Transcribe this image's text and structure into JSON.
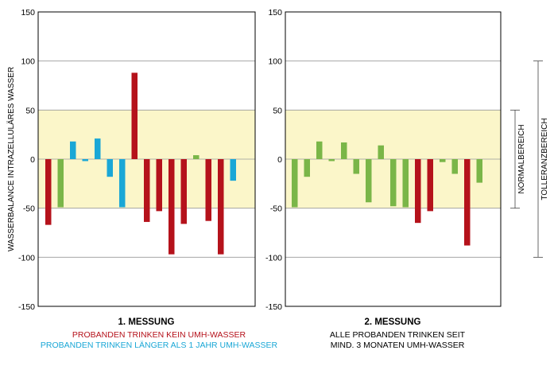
{
  "colors": {
    "red": "#b5121b",
    "blue": "#1aa7d6",
    "green": "#7ab648",
    "band": "#fbf6c9",
    "frame": "#000000",
    "grid": "#9a9a9a"
  },
  "chart_data": [
    {
      "type": "bar",
      "title": "1. MESSUNG",
      "ylabel": "WASSERBALANCE INTRAZELLULÄRES WASSER",
      "ylim": [
        -150,
        150
      ],
      "yticks": [
        -150,
        -100,
        -50,
        0,
        50,
        100,
        150
      ],
      "shaded_range": [
        -50,
        50
      ],
      "grid": true,
      "bars": [
        {
          "value": -67,
          "group": "red"
        },
        {
          "value": -49,
          "group": "green"
        },
        {
          "value": 18,
          "group": "blue"
        },
        {
          "value": -2,
          "group": "blue"
        },
        {
          "value": 21,
          "group": "blue"
        },
        {
          "value": -18,
          "group": "blue"
        },
        {
          "value": -49,
          "group": "blue"
        },
        {
          "value": 88,
          "group": "red"
        },
        {
          "value": -64,
          "group": "red"
        },
        {
          "value": -53,
          "group": "red"
        },
        {
          "value": -97,
          "group": "red"
        },
        {
          "value": -66,
          "group": "red"
        },
        {
          "value": 4,
          "group": "green"
        },
        {
          "value": -63,
          "group": "red"
        },
        {
          "value": -97,
          "group": "red"
        },
        {
          "value": -22,
          "group": "blue"
        }
      ],
      "legend": [
        {
          "label": "PROBANDEN TRINKEN KEIN UMH-WASSER",
          "color": "red"
        },
        {
          "label": "PROBANDEN TRINKEN LÄNGER ALS 1 JAHR UMH-WASSER",
          "color": "blue"
        }
      ]
    },
    {
      "type": "bar",
      "title": "2. MESSUNG",
      "ylim": [
        -150,
        150
      ],
      "yticks": [
        -150,
        -100,
        -50,
        0,
        50,
        100,
        150
      ],
      "shaded_range": [
        -50,
        50
      ],
      "grid": true,
      "bars": [
        {
          "value": -49,
          "group": "green"
        },
        {
          "value": -18,
          "group": "green"
        },
        {
          "value": 18,
          "group": "green"
        },
        {
          "value": -2,
          "group": "green"
        },
        {
          "value": 17,
          "group": "green"
        },
        {
          "value": -15,
          "group": "green"
        },
        {
          "value": -44,
          "group": "green"
        },
        {
          "value": 14,
          "group": "green"
        },
        {
          "value": -48,
          "group": "green"
        },
        {
          "value": -49,
          "group": "green"
        },
        {
          "value": -65,
          "group": "red"
        },
        {
          "value": -53,
          "group": "red"
        },
        {
          "value": -3,
          "group": "green"
        },
        {
          "value": -15,
          "group": "green"
        },
        {
          "value": -88,
          "group": "red"
        },
        {
          "value": -24,
          "group": "green"
        }
      ],
      "caption": [
        "ALLE PROBANDEN TRINKEN SEIT",
        "MIND. 3 MONATEN UMH-WASSER"
      ]
    }
  ],
  "ranges": [
    {
      "label": "NORMALBEREICH",
      "range": [
        -50,
        50
      ]
    },
    {
      "label": "TOLLERANZBEREICH",
      "range": [
        -100,
        100
      ]
    }
  ]
}
